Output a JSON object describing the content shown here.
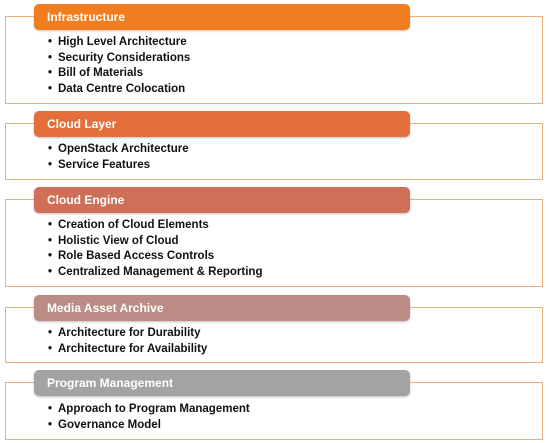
{
  "colors": {
    "panel_border": "#e8b07a",
    "infrastructure_header": "#f07d20",
    "cloud_layer_header": "#e3703a",
    "cloud_engine_header": "#cf6f58",
    "media_asset_header": "#bb8c85",
    "program_mgmt_header": "#a3a3a3"
  },
  "sections": [
    {
      "title": "Infrastructure",
      "items": [
        "High Level Architecture",
        "Security Considerations",
        "Bill of Materials",
        "Data Centre Colocation"
      ]
    },
    {
      "title": "Cloud Layer",
      "items": [
        "OpenStack Architecture",
        "Service Features"
      ]
    },
    {
      "title": "Cloud Engine",
      "items": [
        "Creation of Cloud Elements",
        "Holistic View of Cloud",
        "Role Based Access Controls",
        "Centralized Management & Reporting"
      ]
    },
    {
      "title": "Media Asset Archive",
      "items": [
        "Architecture for Durability",
        "Architecture for Availability"
      ]
    },
    {
      "title": "Program Management",
      "items": [
        "Approach to Program Management",
        "Governance Model"
      ]
    }
  ]
}
